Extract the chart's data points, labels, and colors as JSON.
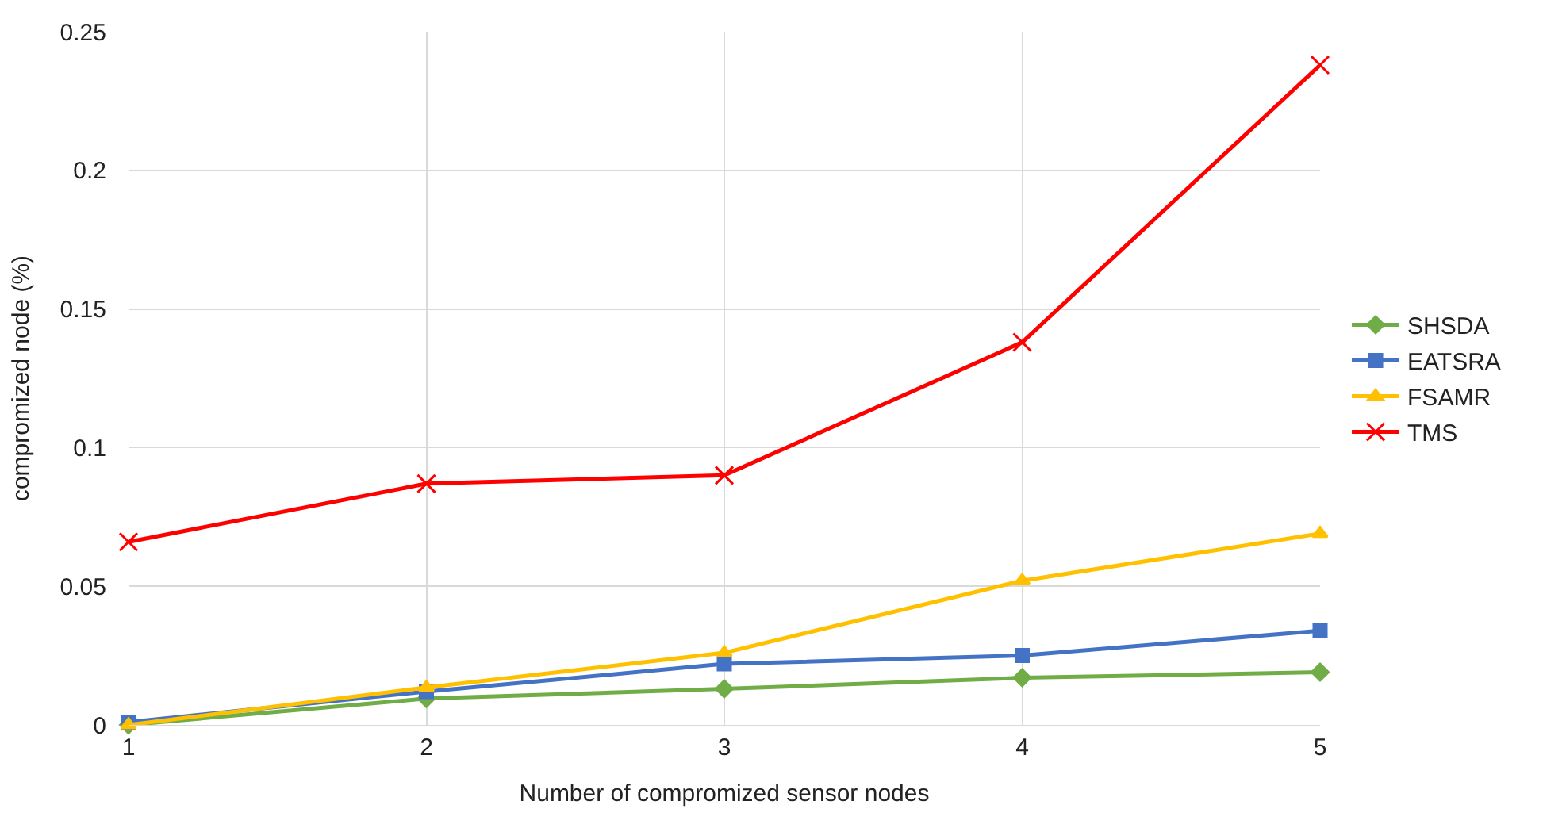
{
  "chart_data": {
    "type": "line",
    "xlabel": "Number of compromized sensor nodes",
    "ylabel": "compromized node (%)",
    "x": [
      1,
      2,
      3,
      4,
      5
    ],
    "series": [
      {
        "name": "SHSDA",
        "color": "#70ad47",
        "marker": "diamond",
        "values": [
          0,
          0.0095,
          0.013,
          0.017,
          0.019
        ]
      },
      {
        "name": "EATSRA",
        "color": "#4472c4",
        "marker": "square",
        "values": [
          0.001,
          0.012,
          0.022,
          0.025,
          0.034
        ]
      },
      {
        "name": "FSAMR",
        "color": "#ffc000",
        "marker": "triangle",
        "values": [
          0,
          0.0135,
          0.026,
          0.052,
          0.069
        ]
      },
      {
        "name": "TMS",
        "color": "#ff0000",
        "marker": "cross",
        "values": [
          0.066,
          0.087,
          0.09,
          0.138,
          0.238
        ]
      }
    ],
    "xlim": [
      1,
      5
    ],
    "xticks": [
      1,
      2,
      3,
      4,
      5
    ],
    "ylim": [
      0,
      0.25
    ],
    "yticks": [
      0,
      0.05,
      0.1,
      0.15,
      0.2,
      0.25
    ],
    "grid": true,
    "legend": "right"
  }
}
